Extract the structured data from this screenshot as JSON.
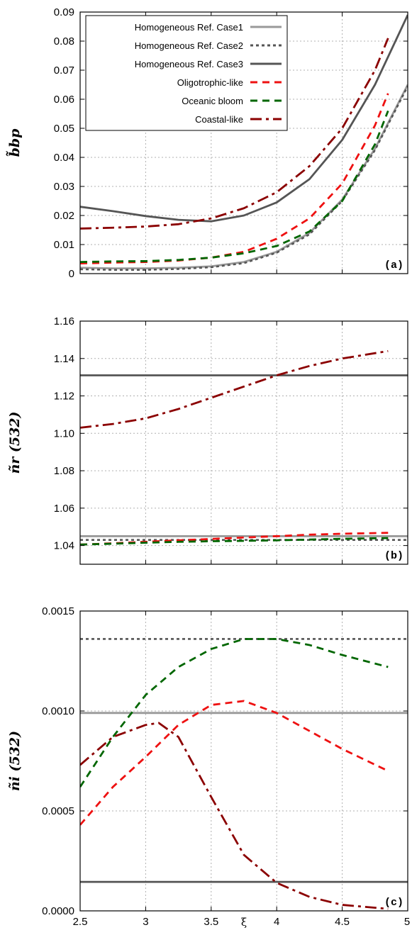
{
  "chart_data": [
    {
      "type": "line",
      "panel_label": "(a)",
      "ylabel": "b̃bp",
      "xlim": [
        2.5,
        5
      ],
      "ylim": [
        0,
        0.09
      ],
      "xticks": [
        2.5,
        3,
        3.5,
        4,
        4.5,
        5
      ],
      "xtick_labels": [
        "",
        "",
        "",
        "",
        "",
        ""
      ],
      "yticks": [
        0,
        0.01,
        0.02,
        0.03,
        0.04,
        0.05,
        0.06,
        0.07,
        0.08,
        0.09
      ],
      "ytick_labels": [
        "0",
        "0.01",
        "0.02",
        "0.03",
        "0.04",
        "0.05",
        "0.06",
        "0.07",
        "0.08",
        "0.09"
      ],
      "grid": true,
      "legend_position": "top-left",
      "series": [
        {
          "name": "Homogeneous Ref. Case1",
          "color": "#999999",
          "dash": "solid",
          "x": [
            2.5,
            2.75,
            3.0,
            3.25,
            3.5,
            3.75,
            4.0,
            4.25,
            4.5,
            4.75,
            5.0
          ],
          "y": [
            0.002,
            0.0018,
            0.0018,
            0.002,
            0.0025,
            0.004,
            0.0075,
            0.014,
            0.0255,
            0.043,
            0.065
          ]
        },
        {
          "name": "Homogeneous Ref. Case2",
          "color": "#555555",
          "dash": "dotted",
          "x": [
            2.5,
            2.75,
            3.0,
            3.25,
            3.5,
            3.75,
            4.0,
            4.25,
            4.5,
            4.75,
            5.0
          ],
          "y": [
            0.0015,
            0.0013,
            0.0013,
            0.0016,
            0.0022,
            0.0036,
            0.0072,
            0.0135,
            0.025,
            0.0425,
            0.0645
          ]
        },
        {
          "name": "Homogeneous Ref. Case3",
          "color": "#555555",
          "dash": "solid",
          "x": [
            2.5,
            2.75,
            3.0,
            3.25,
            3.5,
            3.75,
            4.0,
            4.25,
            4.5,
            4.75,
            5.0
          ],
          "y": [
            0.023,
            0.0215,
            0.0198,
            0.0185,
            0.018,
            0.02,
            0.0245,
            0.0325,
            0.046,
            0.065,
            0.089
          ]
        },
        {
          "name": "Oligotrophic-like",
          "color": "#ee1111",
          "dash": "dashed",
          "x": [
            2.5,
            2.75,
            3.0,
            3.25,
            3.5,
            3.75,
            4.0,
            4.25,
            4.5,
            4.75,
            4.85
          ],
          "y": [
            0.0035,
            0.0038,
            0.004,
            0.0045,
            0.0055,
            0.0075,
            0.012,
            0.019,
            0.031,
            0.051,
            0.062
          ]
        },
        {
          "name": "Oceanic bloom",
          "color": "#006600",
          "dash": "dashed",
          "x": [
            2.5,
            2.75,
            3.0,
            3.25,
            3.5,
            3.75,
            4.0,
            4.25,
            4.5,
            4.75,
            4.85
          ],
          "y": [
            0.004,
            0.0042,
            0.0043,
            0.0047,
            0.0055,
            0.007,
            0.0095,
            0.0145,
            0.025,
            0.0445,
            0.056
          ]
        },
        {
          "name": "Coastal-like",
          "color": "#8b0000",
          "dash": "dashdot",
          "x": [
            2.5,
            2.75,
            3.0,
            3.25,
            3.5,
            3.75,
            4.0,
            4.25,
            4.5,
            4.75,
            4.85
          ],
          "y": [
            0.0155,
            0.0158,
            0.0162,
            0.017,
            0.019,
            0.0225,
            0.028,
            0.037,
            0.05,
            0.07,
            0.081
          ]
        }
      ]
    },
    {
      "type": "line",
      "panel_label": "(b)",
      "ylabel": "ñr (532)",
      "xlim": [
        2.5,
        5
      ],
      "ylim": [
        1.03,
        1.16
      ],
      "xticks": [
        2.5,
        3,
        3.5,
        4,
        4.5,
        5
      ],
      "xtick_labels": [
        "",
        "",
        "",
        "",
        "",
        ""
      ],
      "yticks": [
        1.04,
        1.06,
        1.08,
        1.1,
        1.12,
        1.14,
        1.16
      ],
      "ytick_labels": [
        "1.04",
        "1.06",
        "1.08",
        "1.10",
        "1.12",
        "1.14",
        "1.16"
      ],
      "grid": true,
      "series": [
        {
          "color": "#999999",
          "dash": "solid",
          "x": [
            2.5,
            5.0
          ],
          "y": [
            1.045,
            1.045
          ]
        },
        {
          "color": "#555555",
          "dash": "dotted",
          "x": [
            2.5,
            5.0
          ],
          "y": [
            1.043,
            1.043
          ]
        },
        {
          "color": "#555555",
          "dash": "solid",
          "x": [
            2.5,
            5.0
          ],
          "y": [
            1.131,
            1.131
          ]
        },
        {
          "color": "#ee1111",
          "dash": "dashed",
          "x": [
            2.5,
            2.75,
            3.0,
            3.25,
            3.5,
            3.75,
            4.0,
            4.25,
            4.5,
            4.85
          ],
          "y": [
            1.0405,
            1.0412,
            1.042,
            1.0428,
            1.0435,
            1.0443,
            1.045,
            1.0458,
            1.0463,
            1.0468
          ]
        },
        {
          "color": "#006600",
          "dash": "dashed",
          "x": [
            2.5,
            2.75,
            3.0,
            3.25,
            3.5,
            3.75,
            4.0,
            4.25,
            4.5,
            4.85
          ],
          "y": [
            1.0405,
            1.041,
            1.0415,
            1.042,
            1.0423,
            1.0425,
            1.0428,
            1.0432,
            1.0436,
            1.044
          ]
        },
        {
          "color": "#8b0000",
          "dash": "dashdot",
          "x": [
            2.5,
            2.75,
            3.0,
            3.25,
            3.5,
            3.75,
            4.0,
            4.25,
            4.5,
            4.85
          ],
          "y": [
            1.103,
            1.105,
            1.108,
            1.113,
            1.119,
            1.125,
            1.131,
            1.136,
            1.14,
            1.144
          ]
        }
      ]
    },
    {
      "type": "line",
      "panel_label": "(c)",
      "ylabel": "ñi (532)",
      "xlabel": "ξ",
      "xlim": [
        2.5,
        5
      ],
      "ylim": [
        0,
        0.0015
      ],
      "xticks": [
        2.5,
        3,
        3.5,
        4,
        4.5,
        5
      ],
      "xtick_labels": [
        "2.5",
        "3",
        "3.5",
        "4",
        "4.5",
        "5"
      ],
      "yticks": [
        0,
        0.0005,
        0.001,
        0.0015
      ],
      "ytick_labels": [
        "0.0000",
        "0.0005",
        "0.0010",
        "0.0015"
      ],
      "grid": true,
      "series": [
        {
          "color": "#999999",
          "dash": "solid",
          "x": [
            2.5,
            5.0
          ],
          "y": [
            0.00099,
            0.00099
          ]
        },
        {
          "color": "#555555",
          "dash": "dotted",
          "x": [
            2.5,
            5.0
          ],
          "y": [
            0.00136,
            0.00136
          ]
        },
        {
          "color": "#555555",
          "dash": "solid",
          "x": [
            2.5,
            5.0
          ],
          "y": [
            0.000145,
            0.000145
          ]
        },
        {
          "color": "#ee1111",
          "dash": "dashed",
          "x": [
            2.5,
            2.75,
            3.0,
            3.25,
            3.5,
            3.75,
            4.0,
            4.25,
            4.5,
            4.85
          ],
          "y": [
            0.00043,
            0.00062,
            0.00077,
            0.00093,
            0.00103,
            0.00105,
            0.00099,
            0.0009,
            0.00081,
            0.0007
          ]
        },
        {
          "color": "#006600",
          "dash": "dashed",
          "x": [
            2.5,
            2.75,
            3.0,
            3.25,
            3.5,
            3.75,
            4.0,
            4.25,
            4.5,
            4.85
          ],
          "y": [
            0.00062,
            0.00087,
            0.00108,
            0.00122,
            0.00131,
            0.00136,
            0.00136,
            0.00133,
            0.00128,
            0.00122
          ]
        },
        {
          "color": "#8b0000",
          "dash": "dashdot",
          "x": [
            2.5,
            2.75,
            3.0,
            3.1,
            3.25,
            3.5,
            3.75,
            4.0,
            4.25,
            4.5,
            4.85
          ],
          "y": [
            0.00073,
            0.00087,
            0.00093,
            0.00094,
            0.00087,
            0.00057,
            0.00028,
            0.00014,
            7e-05,
            3e-05,
            1e-05
          ]
        }
      ]
    }
  ]
}
